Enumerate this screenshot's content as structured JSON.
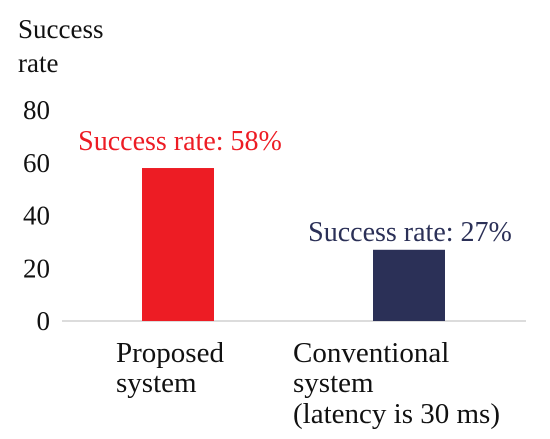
{
  "chart_data": {
    "type": "bar",
    "ylabel": [
      "Success",
      "rate"
    ],
    "ylim": [
      0,
      80
    ],
    "yticks": [
      0,
      20,
      40,
      60,
      80
    ],
    "grid": false,
    "categories": [
      [
        "Proposed",
        "system"
      ],
      [
        "Conventional",
        "system",
        "(latency is 30 ms)"
      ]
    ],
    "values": [
      58,
      27
    ],
    "bar_colors": [
      "#ed1c24",
      "#2b3057"
    ],
    "data_labels": [
      "Success rate: 58%",
      "Success rate: 27%"
    ],
    "label_colors": [
      "#ed1c24",
      "#2b3057"
    ]
  }
}
